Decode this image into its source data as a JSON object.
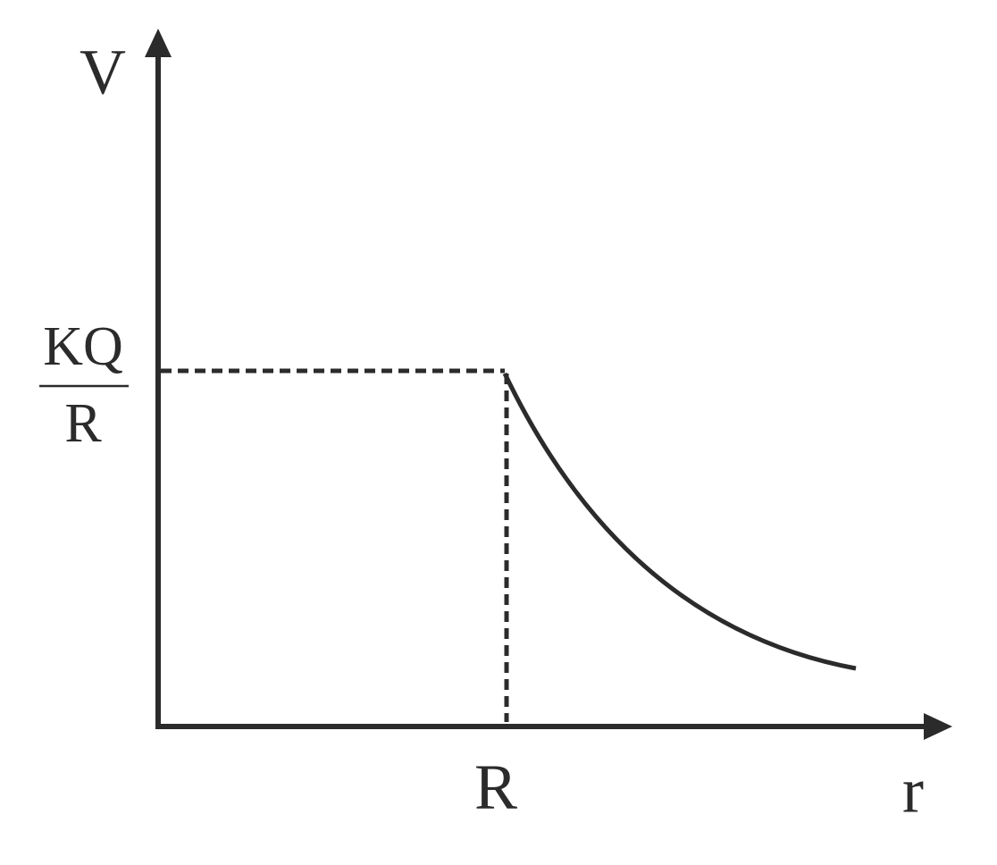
{
  "axes": {
    "y_label": "V",
    "x_label": "r"
  },
  "x_marker": {
    "label": "R"
  },
  "y_marker": {
    "numerator": "KQ",
    "denominator": "R"
  }
}
